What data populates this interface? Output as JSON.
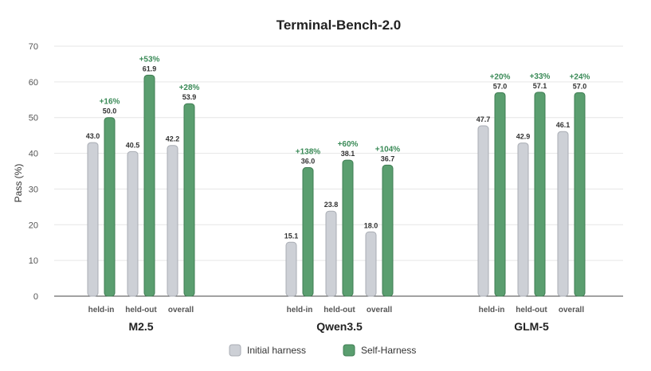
{
  "chart_data": {
    "type": "bar",
    "title": "Terminal-Bench-2.0",
    "ylabel": "Pass (%)",
    "xlabel": "",
    "ylim": [
      0,
      70
    ],
    "yticks": [
      0,
      10,
      20,
      30,
      40,
      50,
      60,
      70
    ],
    "grid": true,
    "legend_position": "bottom-center",
    "subcategories": [
      "held-in",
      "held-out",
      "overall"
    ],
    "series": [
      {
        "name": "Initial harness",
        "color": "#cdd0d6",
        "stroke": "#a9adb4"
      },
      {
        "name": "Self-Harness",
        "color": "#5a9e6f",
        "stroke": "#3f7d53"
      }
    ],
    "groups": [
      {
        "name": "M2.5",
        "items": [
          {
            "label": "held-in",
            "initial": 43.0,
            "self": 50.0,
            "initial_text": "43.0",
            "self_text": "50.0",
            "gain": "+16%"
          },
          {
            "label": "held-out",
            "initial": 40.5,
            "self": 61.9,
            "initial_text": "40.5",
            "self_text": "61.9",
            "gain": "+53%"
          },
          {
            "label": "overall",
            "initial": 42.2,
            "self": 53.9,
            "initial_text": "42.2",
            "self_text": "53.9",
            "gain": "+28%"
          }
        ]
      },
      {
        "name": "Qwen3.5",
        "items": [
          {
            "label": "held-in",
            "initial": 15.1,
            "self": 36.0,
            "initial_text": "15.1",
            "self_text": "36.0",
            "gain": "+138%"
          },
          {
            "label": "held-out",
            "initial": 23.8,
            "self": 38.1,
            "initial_text": "23.8",
            "self_text": "38.1",
            "gain": "+60%"
          },
          {
            "label": "overall",
            "initial": 18.0,
            "self": 36.7,
            "initial_text": "18.0",
            "self_text": "36.7",
            "gain": "+104%"
          }
        ]
      },
      {
        "name": "GLM-5",
        "items": [
          {
            "label": "held-in",
            "initial": 47.7,
            "self": 57.0,
            "initial_text": "47.7",
            "self_text": "57.0",
            "gain": "+20%"
          },
          {
            "label": "held-out",
            "initial": 42.9,
            "self": 57.1,
            "initial_text": "42.9",
            "self_text": "57.1",
            "gain": "+33%"
          },
          {
            "label": "overall",
            "initial": 46.1,
            "self": 57.0,
            "initial_text": "46.1",
            "self_text": "57.0",
            "gain": "+24%"
          }
        ]
      }
    ]
  }
}
